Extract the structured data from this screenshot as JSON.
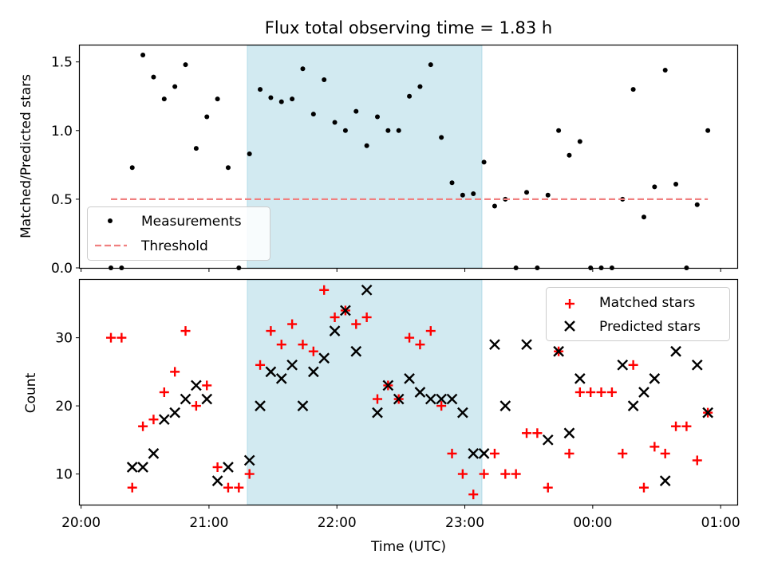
{
  "chart_data": [
    {
      "type": "scatter",
      "title": "Flux total observing time = 1.83 h",
      "xlabel": "",
      "ylabel": "Matched/Predicted stars",
      "ylim": [
        0,
        1.62
      ],
      "yticks": [
        "0.0",
        "0.5",
        "1.0",
        "1.5"
      ],
      "xlim_hours": [
        19.99,
        25.13
      ],
      "x_tick_labels": [
        "20:00",
        "21:00",
        "22:00",
        "23:00",
        "00:00",
        "01:00"
      ],
      "highlight_span": {
        "from": "21:18",
        "to": "23:08",
        "color": "#add8e6"
      },
      "legend_position": "lower-left",
      "series": [
        {
          "name": "Measurements",
          "style": "dot",
          "color": "#000000",
          "points": [
            [
              "20:14",
              0.0
            ],
            [
              "20:19",
              0.0
            ],
            [
              "20:24",
              0.73
            ],
            [
              "20:29",
              1.55
            ],
            [
              "20:34",
              1.39
            ],
            [
              "20:39",
              1.23
            ],
            [
              "20:44",
              1.32
            ],
            [
              "20:49",
              1.48
            ],
            [
              "20:54",
              0.87
            ],
            [
              "20:59",
              1.1
            ],
            [
              "21:04",
              1.23
            ],
            [
              "21:09",
              0.73
            ],
            [
              "21:14",
              0.0
            ],
            [
              "21:19",
              0.83
            ],
            [
              "21:24",
              1.3
            ],
            [
              "21:29",
              1.24
            ],
            [
              "21:34",
              1.21
            ],
            [
              "21:39",
              1.23
            ],
            [
              "21:44",
              1.45
            ],
            [
              "21:49",
              1.12
            ],
            [
              "21:54",
              1.37
            ],
            [
              "21:59",
              1.06
            ],
            [
              "22:04",
              1.0
            ],
            [
              "22:09",
              1.14
            ],
            [
              "22:14",
              0.89
            ],
            [
              "22:19",
              1.1
            ],
            [
              "22:24",
              1.0
            ],
            [
              "22:29",
              1.0
            ],
            [
              "22:34",
              1.25
            ],
            [
              "22:39",
              1.32
            ],
            [
              "22:44",
              1.48
            ],
            [
              "22:49",
              0.95
            ],
            [
              "22:54",
              0.62
            ],
            [
              "22:59",
              0.53
            ],
            [
              "23:04",
              0.54
            ],
            [
              "23:09",
              0.77
            ],
            [
              "23:14",
              0.45
            ],
            [
              "23:19",
              0.5
            ],
            [
              "23:24",
              0.0
            ],
            [
              "23:29",
              0.55
            ],
            [
              "23:34",
              0.0
            ],
            [
              "23:39",
              0.53
            ],
            [
              "23:44",
              1.0
            ],
            [
              "23:49",
              0.82
            ],
            [
              "23:54",
              0.92
            ],
            [
              "23:59",
              0.0
            ],
            [
              "00:04",
              0.0
            ],
            [
              "00:09",
              0.0
            ],
            [
              "00:14",
              0.5
            ],
            [
              "00:19",
              1.3
            ],
            [
              "00:24",
              0.37
            ],
            [
              "00:29",
              0.59
            ],
            [
              "00:34",
              1.44
            ],
            [
              "00:39",
              0.61
            ],
            [
              "00:44",
              0.0
            ],
            [
              "00:49",
              0.46
            ],
            [
              "00:54",
              1.0
            ]
          ]
        },
        {
          "name": "Threshold",
          "style": "dashed-line",
          "color": "#f08080",
          "x": [
            "20:14",
            "00:54"
          ],
          "y": [
            0.5,
            0.5
          ]
        }
      ]
    },
    {
      "type": "scatter",
      "title": "",
      "xlabel": "Time (UTC)",
      "ylabel": "Count",
      "ylim": [
        5.5,
        38.5
      ],
      "yticks": [
        "10",
        "20",
        "30"
      ],
      "xlim_hours": [
        19.99,
        25.13
      ],
      "x_tick_labels": [
        "20:00",
        "21:00",
        "22:00",
        "23:00",
        "00:00",
        "01:00"
      ],
      "highlight_span": {
        "from": "21:18",
        "to": "23:08",
        "color": "#add8e6"
      },
      "legend_position": "upper-right",
      "series": [
        {
          "name": "Matched stars",
          "style": "plus",
          "color": "#ff0000",
          "points": [
            [
              "20:14",
              30
            ],
            [
              "20:19",
              30
            ],
            [
              "20:24",
              8
            ],
            [
              "20:29",
              17
            ],
            [
              "20:34",
              18
            ],
            [
              "20:39",
              22
            ],
            [
              "20:44",
              25
            ],
            [
              "20:49",
              31
            ],
            [
              "20:54",
              20
            ],
            [
              "20:59",
              23
            ],
            [
              "21:04",
              11
            ],
            [
              "21:09",
              8
            ],
            [
              "21:14",
              8
            ],
            [
              "21:19",
              10
            ],
            [
              "21:24",
              26
            ],
            [
              "21:29",
              31
            ],
            [
              "21:34",
              29
            ],
            [
              "21:39",
              32
            ],
            [
              "21:44",
              29
            ],
            [
              "21:49",
              28
            ],
            [
              "21:54",
              37
            ],
            [
              "21:59",
              33
            ],
            [
              "22:04",
              34
            ],
            [
              "22:09",
              32
            ],
            [
              "22:14",
              33
            ],
            [
              "22:19",
              21
            ],
            [
              "22:24",
              23
            ],
            [
              "22:29",
              21
            ],
            [
              "22:34",
              30
            ],
            [
              "22:39",
              29
            ],
            [
              "22:44",
              31
            ],
            [
              "22:49",
              20
            ],
            [
              "22:54",
              13
            ],
            [
              "22:59",
              10
            ],
            [
              "23:04",
              7
            ],
            [
              "23:09",
              10
            ],
            [
              "23:14",
              13
            ],
            [
              "23:19",
              10
            ],
            [
              "23:24",
              10
            ],
            [
              "23:29",
              16
            ],
            [
              "23:34",
              16
            ],
            [
              "23:39",
              8
            ],
            [
              "23:44",
              28
            ],
            [
              "23:49",
              13
            ],
            [
              "23:54",
              22
            ],
            [
              "23:59",
              22
            ],
            [
              "00:04",
              22
            ],
            [
              "00:09",
              22
            ],
            [
              "00:14",
              13
            ],
            [
              "00:19",
              26
            ],
            [
              "00:24",
              8
            ],
            [
              "00:29",
              14
            ],
            [
              "00:34",
              13
            ],
            [
              "00:39",
              17
            ],
            [
              "00:44",
              17
            ],
            [
              "00:49",
              12
            ],
            [
              "00:54",
              19
            ]
          ]
        },
        {
          "name": "Predicted stars",
          "style": "x",
          "color": "#000000",
          "points": [
            [
              "20:24",
              11
            ],
            [
              "20:29",
              11
            ],
            [
              "20:34",
              13
            ],
            [
              "20:39",
              18
            ],
            [
              "20:44",
              19
            ],
            [
              "20:49",
              21
            ],
            [
              "20:54",
              23
            ],
            [
              "20:59",
              21
            ],
            [
              "21:04",
              9
            ],
            [
              "21:09",
              11
            ],
            [
              "21:19",
              12
            ],
            [
              "21:24",
              20
            ],
            [
              "21:29",
              25
            ],
            [
              "21:34",
              24
            ],
            [
              "21:39",
              26
            ],
            [
              "21:44",
              20
            ],
            [
              "21:49",
              25
            ],
            [
              "21:54",
              27
            ],
            [
              "21:59",
              31
            ],
            [
              "22:04",
              34
            ],
            [
              "22:09",
              28
            ],
            [
              "22:14",
              37
            ],
            [
              "22:19",
              19
            ],
            [
              "22:24",
              23
            ],
            [
              "22:29",
              21
            ],
            [
              "22:34",
              24
            ],
            [
              "22:39",
              22
            ],
            [
              "22:44",
              21
            ],
            [
              "22:49",
              21
            ],
            [
              "22:54",
              21
            ],
            [
              "22:59",
              19
            ],
            [
              "23:04",
              13
            ],
            [
              "23:09",
              13
            ],
            [
              "23:14",
              29
            ],
            [
              "23:19",
              20
            ],
            [
              "23:29",
              29
            ],
            [
              "23:39",
              15
            ],
            [
              "23:44",
              28
            ],
            [
              "23:49",
              16
            ],
            [
              "23:54",
              24
            ],
            [
              "00:14",
              26
            ],
            [
              "00:19",
              20
            ],
            [
              "00:24",
              22
            ],
            [
              "00:29",
              24
            ],
            [
              "00:34",
              9
            ],
            [
              "00:39",
              28
            ],
            [
              "00:49",
              26
            ],
            [
              "00:54",
              19
            ]
          ]
        }
      ]
    }
  ]
}
